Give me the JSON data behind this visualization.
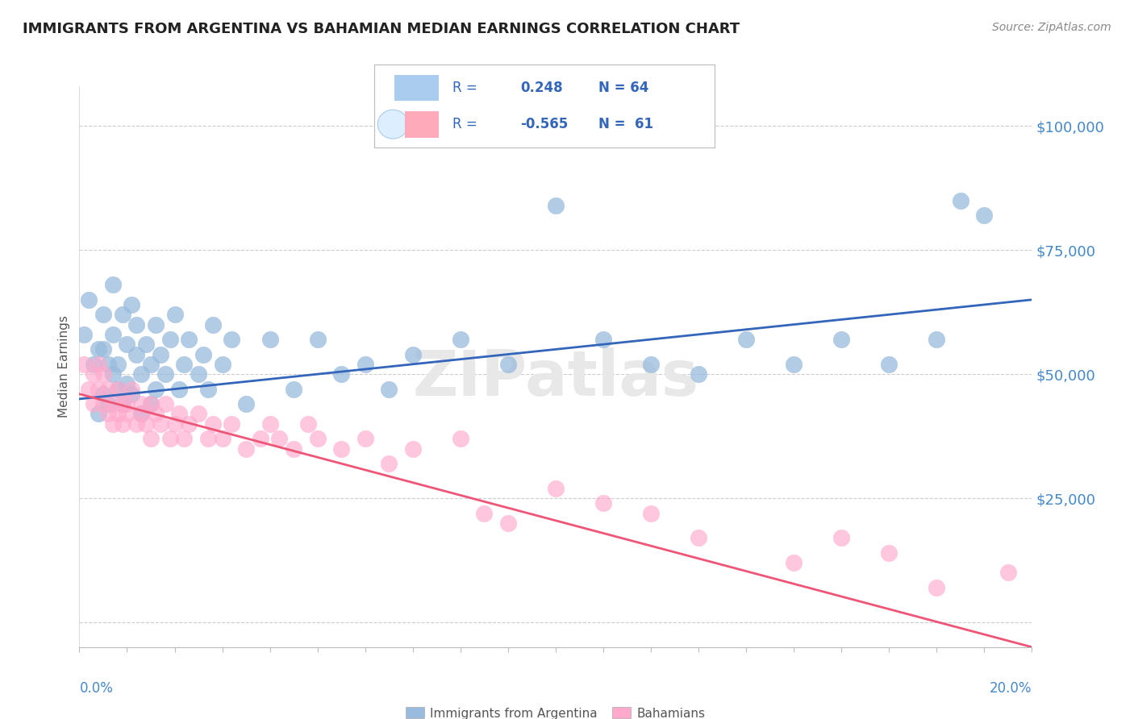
{
  "title": "IMMIGRANTS FROM ARGENTINA VS BAHAMIAN MEDIAN EARNINGS CORRELATION CHART",
  "source_text": "Source: ZipAtlas.com",
  "ylabel": "Median Earnings",
  "y_ticks": [
    0,
    25000,
    50000,
    75000,
    100000
  ],
  "y_tick_labels": [
    "",
    "$25,000",
    "$50,000",
    "$75,000",
    "$100,000"
  ],
  "xlim": [
    0.0,
    0.2
  ],
  "ylim": [
    -5000,
    108000
  ],
  "argentina_R": 0.248,
  "argentina_N": 64,
  "bahamian_R": -0.565,
  "bahamian_N": 61,
  "argentina_color": "#99bbdd",
  "bahamian_color": "#ffaacc",
  "argentina_line_color": "#3366bb",
  "bahamian_line_color": "#ee5577",
  "legend_color": "#3366bb",
  "axis_color": "#4488cc",
  "title_color": "#222222",
  "grid_color": "#cccccc",
  "watermark_text": "ZIPatlas",
  "watermark_color": "#e8e8e8",
  "arg_line_y0": 45000,
  "arg_line_y1": 65000,
  "bah_line_y0": 46000,
  "bah_line_y1": -5000,
  "argentina_x": [
    0.001,
    0.002,
    0.003,
    0.004,
    0.004,
    0.005,
    0.005,
    0.005,
    0.006,
    0.006,
    0.007,
    0.007,
    0.007,
    0.008,
    0.008,
    0.009,
    0.009,
    0.01,
    0.01,
    0.011,
    0.011,
    0.012,
    0.012,
    0.013,
    0.013,
    0.014,
    0.015,
    0.015,
    0.016,
    0.016,
    0.017,
    0.018,
    0.019,
    0.02,
    0.021,
    0.022,
    0.023,
    0.025,
    0.026,
    0.027,
    0.028,
    0.03,
    0.032,
    0.035,
    0.04,
    0.045,
    0.05,
    0.055,
    0.06,
    0.065,
    0.07,
    0.08,
    0.09,
    0.1,
    0.11,
    0.12,
    0.13,
    0.14,
    0.15,
    0.16,
    0.17,
    0.18,
    0.185,
    0.19
  ],
  "argentina_y": [
    58000,
    65000,
    52000,
    42000,
    55000,
    62000,
    46000,
    55000,
    44000,
    52000,
    68000,
    50000,
    58000,
    47000,
    52000,
    62000,
    44000,
    48000,
    56000,
    64000,
    46000,
    54000,
    60000,
    42000,
    50000,
    56000,
    52000,
    44000,
    60000,
    47000,
    54000,
    50000,
    57000,
    62000,
    47000,
    52000,
    57000,
    50000,
    54000,
    47000,
    60000,
    52000,
    57000,
    44000,
    57000,
    47000,
    57000,
    50000,
    52000,
    47000,
    54000,
    57000,
    52000,
    84000,
    57000,
    52000,
    50000,
    57000,
    52000,
    57000,
    52000,
    57000,
    85000,
    82000
  ],
  "bahamian_x": [
    0.001,
    0.002,
    0.003,
    0.003,
    0.004,
    0.004,
    0.005,
    0.005,
    0.006,
    0.006,
    0.007,
    0.007,
    0.008,
    0.008,
    0.009,
    0.009,
    0.01,
    0.01,
    0.011,
    0.012,
    0.013,
    0.013,
    0.014,
    0.015,
    0.015,
    0.016,
    0.017,
    0.018,
    0.019,
    0.02,
    0.021,
    0.022,
    0.023,
    0.025,
    0.027,
    0.028,
    0.03,
    0.032,
    0.035,
    0.038,
    0.04,
    0.042,
    0.045,
    0.048,
    0.05,
    0.055,
    0.06,
    0.065,
    0.07,
    0.08,
    0.085,
    0.09,
    0.1,
    0.11,
    0.12,
    0.13,
    0.15,
    0.16,
    0.17,
    0.18,
    0.195
  ],
  "bahamian_y": [
    52000,
    47000,
    50000,
    44000,
    47000,
    52000,
    44000,
    50000,
    42000,
    47000,
    40000,
    44000,
    42000,
    47000,
    44000,
    40000,
    44000,
    42000,
    47000,
    40000,
    44000,
    42000,
    40000,
    44000,
    37000,
    42000,
    40000,
    44000,
    37000,
    40000,
    42000,
    37000,
    40000,
    42000,
    37000,
    40000,
    37000,
    40000,
    35000,
    37000,
    40000,
    37000,
    35000,
    40000,
    37000,
    35000,
    37000,
    32000,
    35000,
    37000,
    22000,
    20000,
    27000,
    24000,
    22000,
    17000,
    12000,
    17000,
    14000,
    7000,
    10000
  ]
}
